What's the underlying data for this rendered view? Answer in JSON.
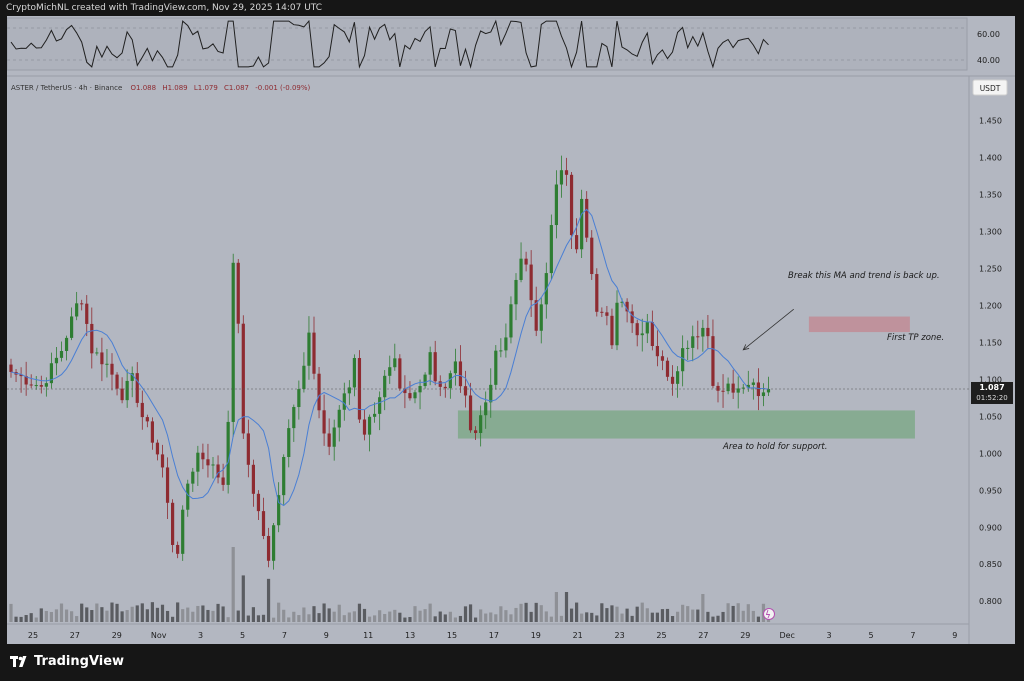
{
  "header": {
    "attribution": "CryptoMichNL created with TradingView.com, Nov 29, 2025 14:07 UTC"
  },
  "colors": {
    "background": "#b3b7c1",
    "panel_border": "#9a9ea8",
    "up_candle": "#2e7d32",
    "down_candle": "#8e2b31",
    "ma_line": "#4a7fd4",
    "rsi_line": "#202020",
    "support_zone": "#7fa98a",
    "tp_zone": "#c18c95"
  },
  "chart_data": {
    "type": "candlestick",
    "instrument": {
      "symbol": "ASTER / TetherUS",
      "interval": "4h",
      "exchange": "Binance",
      "O": "O1.088",
      "H": "H1.089",
      "L": "L1.079",
      "C": "C1.087",
      "change": "-0.001 (-0.09%)"
    },
    "currency_label": "USDT",
    "ylim": [
      0.78,
      1.49
    ],
    "y_ticks": [
      "1.450",
      "1.400",
      "1.350",
      "1.300",
      "1.250",
      "1.200",
      "1.150",
      "1.100",
      "1.050",
      "1.000",
      "0.950",
      "0.900",
      "0.850",
      "0.800"
    ],
    "x_ticks": [
      "25",
      "27",
      "29",
      "Nov",
      "3",
      "5",
      "7",
      "9",
      "11",
      "13",
      "15",
      "17",
      "19",
      "21",
      "23",
      "25",
      "27",
      "29",
      "Dec",
      "3",
      "5",
      "7",
      "9"
    ],
    "current_price": "1.087",
    "countdown": "01:52:20",
    "close_path": [
      [
        0,
        1.11
      ],
      [
        6,
        1.09
      ],
      [
        10,
        1.14
      ],
      [
        13,
        1.2
      ],
      [
        14,
        1.21
      ],
      [
        16,
        1.14
      ],
      [
        19,
        1.12
      ],
      [
        22,
        1.08
      ],
      [
        24,
        1.1
      ],
      [
        26,
        1.05
      ],
      [
        28,
        1.02
      ],
      [
        30,
        0.98
      ],
      [
        32,
        0.88
      ],
      [
        33,
        0.87
      ],
      [
        35,
        0.96
      ],
      [
        37,
        1.0
      ],
      [
        39,
        0.99
      ],
      [
        41,
        0.97
      ],
      [
        42,
        0.96
      ],
      [
        43,
        1.05
      ],
      [
        44,
        1.25
      ],
      [
        45,
        1.18
      ],
      [
        46,
        1.02
      ],
      [
        48,
        0.95
      ],
      [
        50,
        0.89
      ],
      [
        51,
        0.85
      ],
      [
        52,
        0.9
      ],
      [
        54,
        1.0
      ],
      [
        56,
        1.07
      ],
      [
        58,
        1.12
      ],
      [
        59,
        1.16
      ],
      [
        61,
        1.05
      ],
      [
        62,
        1.03
      ],
      [
        63,
        1.01
      ],
      [
        65,
        1.06
      ],
      [
        67,
        1.09
      ],
      [
        68,
        1.13
      ],
      [
        69,
        1.05
      ],
      [
        70,
        1.03
      ],
      [
        72,
        1.06
      ],
      [
        74,
        1.1
      ],
      [
        76,
        1.12
      ],
      [
        77,
        1.08
      ],
      [
        79,
        1.07
      ],
      [
        81,
        1.09
      ],
      [
        83,
        1.14
      ],
      [
        84,
        1.1
      ],
      [
        86,
        1.09
      ],
      [
        88,
        1.12
      ],
      [
        90,
        1.07
      ],
      [
        91,
        1.04
      ],
      [
        92,
        1.03
      ],
      [
        94,
        1.07
      ],
      [
        96,
        1.13
      ],
      [
        98,
        1.15
      ],
      [
        99,
        1.2
      ],
      [
        101,
        1.27
      ],
      [
        102,
        1.25
      ],
      [
        103,
        1.2
      ],
      [
        104,
        1.17
      ],
      [
        106,
        1.25
      ],
      [
        108,
        1.36
      ],
      [
        109,
        1.38
      ],
      [
        110,
        1.37
      ],
      [
        111,
        1.3
      ],
      [
        112,
        1.27
      ],
      [
        113,
        1.35
      ],
      [
        114,
        1.3
      ],
      [
        115,
        1.25
      ],
      [
        116,
        1.2
      ],
      [
        118,
        1.18
      ],
      [
        119,
        1.14
      ],
      [
        120,
        1.21
      ],
      [
        122,
        1.2
      ],
      [
        124,
        1.16
      ],
      [
        126,
        1.18
      ],
      [
        127,
        1.15
      ],
      [
        129,
        1.12
      ],
      [
        131,
        1.1
      ],
      [
        133,
        1.14
      ],
      [
        135,
        1.16
      ],
      [
        137,
        1.17
      ],
      [
        138,
        1.16
      ],
      [
        139,
        1.1
      ],
      [
        140,
        1.08
      ],
      [
        142,
        1.09
      ],
      [
        144,
        1.08
      ],
      [
        146,
        1.09
      ],
      [
        147,
        1.1
      ],
      [
        148,
        1.08
      ],
      [
        149,
        1.09
      ],
      [
        150,
        1.087
      ]
    ],
    "rsi": {
      "ticks": [
        "60.00",
        "40.00"
      ],
      "ylim": [
        25,
        75
      ]
    },
    "annotations": {
      "ma_note": "Break this MA and trend is back up.",
      "tp_label": "First TP zone.",
      "support_label": "Area to hold for support.",
      "support_zone": {
        "x_from": 88.5,
        "x_to": 179,
        "y_from": 1.02,
        "y_to": 1.058
      },
      "tp_zone": {
        "x_from": 158,
        "x_to": 178,
        "y_from": 1.164,
        "y_to": 1.185
      },
      "arrow": {
        "from": [
          155,
          1.195
        ],
        "to": [
          145,
          1.14
        ]
      }
    }
  }
}
